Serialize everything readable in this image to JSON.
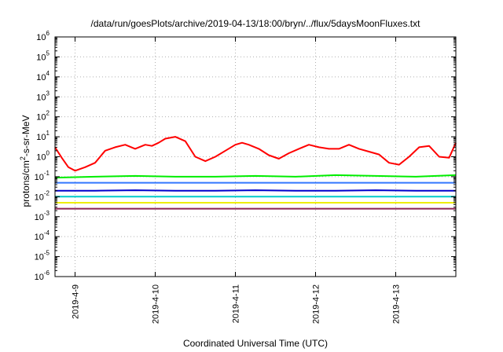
{
  "chart_data": {
    "type": "line",
    "title": "/data/run/goesPlots/archive/2019-04-13/18:00/bryn/../flux/5daysMoonFluxes.txt",
    "xlabel": "Coordinated Universal Time (UTC)",
    "ylabel_main": "protons/cm",
    "ylabel_sup": "2",
    "ylabel_rest": "-s-sr-MeV",
    "y_scale": "log",
    "ylim": [
      1e-06,
      1000000.0
    ],
    "y_ticks": [
      {
        "base": "10",
        "exp": "-6",
        "value": 1e-06
      },
      {
        "base": "10",
        "exp": "-5",
        "value": 1e-05
      },
      {
        "base": "10",
        "exp": "-4",
        "value": 0.0001
      },
      {
        "base": "10",
        "exp": "-3",
        "value": 0.001
      },
      {
        "base": "10",
        "exp": "-2",
        "value": 0.01
      },
      {
        "base": "10",
        "exp": "-1",
        "value": 0.1
      },
      {
        "base": "10",
        "exp": "0",
        "value": 1
      },
      {
        "base": "10",
        "exp": "1",
        "value": 10
      },
      {
        "base": "10",
        "exp": "2",
        "value": 100
      },
      {
        "base": "10",
        "exp": "3",
        "value": 1000
      },
      {
        "base": "10",
        "exp": "4",
        "value": 10000
      },
      {
        "base": "10",
        "exp": "5",
        "value": 100000
      },
      {
        "base": "10",
        "exp": "6",
        "value": 1000000
      }
    ],
    "xlim": [
      "2019-04-08T18:00",
      "2019-04-13T18:00"
    ],
    "x_ticks": [
      "2019-4-9",
      "2019-4-10",
      "2019-4-11",
      "2019-4-12",
      "2019-4-13"
    ],
    "grid": true,
    "legend": "none",
    "series": [
      {
        "color": "#ff0000",
        "x": [
          "2019-04-08T18:00",
          "2019-04-08T20:00",
          "2019-04-08T22:00",
          "2019-04-09T00:00",
          "2019-04-09T03:00",
          "2019-04-09T06:00",
          "2019-04-09T09:00",
          "2019-04-09T12:00",
          "2019-04-09T15:00",
          "2019-04-09T18:00",
          "2019-04-09T21:00",
          "2019-04-09T23:00",
          "2019-04-10T01:00",
          "2019-04-10T03:00",
          "2019-04-10T06:00",
          "2019-04-10T09:00",
          "2019-04-10T12:00",
          "2019-04-10T15:00",
          "2019-04-10T18:00",
          "2019-04-10T21:00",
          "2019-04-11T00:00",
          "2019-04-11T02:00",
          "2019-04-11T04:00",
          "2019-04-11T07:00",
          "2019-04-11T10:00",
          "2019-04-11T13:00",
          "2019-04-11T16:00",
          "2019-04-11T19:00",
          "2019-04-11T22:00",
          "2019-04-12T01:00",
          "2019-04-12T04:00",
          "2019-04-12T07:00",
          "2019-04-12T10:00",
          "2019-04-12T13:00",
          "2019-04-12T16:00",
          "2019-04-12T19:00",
          "2019-04-12T22:00",
          "2019-04-13T01:00",
          "2019-04-13T04:00",
          "2019-04-13T07:00",
          "2019-04-13T10:00",
          "2019-04-13T13:00",
          "2019-04-13T16:00",
          "2019-04-13T18:00"
        ],
        "y": [
          3,
          0.9,
          0.3,
          0.2,
          0.3,
          0.5,
          2,
          3,
          4,
          2.5,
          4,
          3.5,
          5,
          8,
          10,
          6,
          1,
          0.6,
          1,
          2,
          4,
          5,
          4,
          2.5,
          1.2,
          0.8,
          1.5,
          2.5,
          4,
          3,
          2.5,
          2.5,
          4,
          2.5,
          1.8,
          1.3,
          0.5,
          0.4,
          1,
          3,
          3.5,
          1,
          0.9,
          5
        ]
      },
      {
        "color": "#00ee00",
        "x": [
          "2019-04-08T18:00",
          "2019-04-09T06:00",
          "2019-04-09T18:00",
          "2019-04-10T06:00",
          "2019-04-10T18:00",
          "2019-04-11T06:00",
          "2019-04-11T18:00",
          "2019-04-12T06:00",
          "2019-04-12T18:00",
          "2019-04-13T06:00",
          "2019-04-13T18:00"
        ],
        "y": [
          0.09,
          0.1,
          0.11,
          0.1,
          0.1,
          0.11,
          0.1,
          0.12,
          0.11,
          0.1,
          0.12
        ]
      },
      {
        "color": "#3377ff",
        "x": [
          "2019-04-08T18:00",
          "2019-04-09T06:00",
          "2019-04-09T18:00",
          "2019-04-10T06:00",
          "2019-04-10T18:00",
          "2019-04-11T06:00",
          "2019-04-11T18:00",
          "2019-04-12T06:00",
          "2019-04-12T18:00",
          "2019-04-13T06:00",
          "2019-04-13T18:00"
        ],
        "y": [
          0.05,
          0.05,
          0.05,
          0.05,
          0.05,
          0.05,
          0.05,
          0.05,
          0.05,
          0.05,
          0.05
        ]
      },
      {
        "color": "#0000cc",
        "x": [
          "2019-04-08T18:00",
          "2019-04-09T06:00",
          "2019-04-09T18:00",
          "2019-04-10T06:00",
          "2019-04-10T18:00",
          "2019-04-11T06:00",
          "2019-04-11T18:00",
          "2019-04-12T06:00",
          "2019-04-12T18:00",
          "2019-04-13T06:00",
          "2019-04-13T18:00"
        ],
        "y": [
          0.02,
          0.02,
          0.021,
          0.02,
          0.02,
          0.021,
          0.02,
          0.02,
          0.021,
          0.02,
          0.02
        ]
      },
      {
        "color": "#00cccc",
        "x": [
          "2019-04-08T18:00",
          "2019-04-09T06:00",
          "2019-04-09T18:00",
          "2019-04-10T06:00",
          "2019-04-10T18:00",
          "2019-04-11T06:00",
          "2019-04-11T18:00",
          "2019-04-12T06:00",
          "2019-04-12T18:00",
          "2019-04-13T06:00",
          "2019-04-13T18:00"
        ],
        "y": [
          0.01,
          0.01,
          0.01,
          0.01,
          0.01,
          0.01,
          0.01,
          0.01,
          0.01,
          0.01,
          0.01
        ]
      },
      {
        "color": "#eeee00",
        "x": [
          "2019-04-08T18:00",
          "2019-04-13T18:00"
        ],
        "y": [
          0.005,
          0.005
        ]
      },
      {
        "color": "#8b2252",
        "x": [
          "2019-04-08T18:00",
          "2019-04-09T06:00",
          "2019-04-09T18:00",
          "2019-04-10T06:00",
          "2019-04-10T18:00",
          "2019-04-11T06:00",
          "2019-04-11T18:00",
          "2019-04-12T06:00",
          "2019-04-12T18:00",
          "2019-04-13T06:00",
          "2019-04-13T18:00"
        ],
        "y": [
          0.0025,
          0.0025,
          0.0025,
          0.0025,
          0.0025,
          0.0025,
          0.0025,
          0.0025,
          0.0025,
          0.0025,
          0.0025
        ]
      }
    ]
  }
}
